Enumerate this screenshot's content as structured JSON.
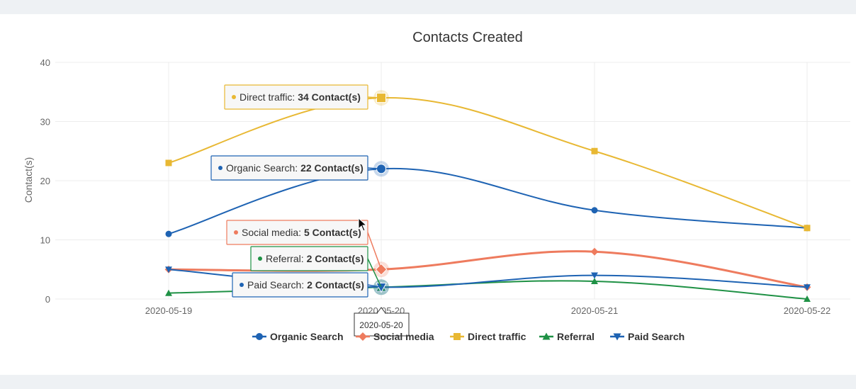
{
  "chart_data": {
    "type": "line",
    "title": "Contacts Created",
    "xlabel": "",
    "ylabel": "Contact(s)",
    "categories": [
      "2020-05-19",
      "2020-05-20",
      "2020-05-21",
      "2020-05-22"
    ],
    "ylim": [
      0,
      40
    ],
    "yticks": [
      0,
      10,
      20,
      30,
      40
    ],
    "grid": true,
    "legend_position": "bottom",
    "series": [
      {
        "name": "Organic Search",
        "values": [
          11,
          22,
          15,
          12
        ],
        "color": "#1e63b3",
        "marker": "circle",
        "width": 2
      },
      {
        "name": "Social media",
        "values": [
          5,
          5,
          8,
          2
        ],
        "color": "#ee7b5e",
        "marker": "diamond",
        "width": 3
      },
      {
        "name": "Direct traffic",
        "values": [
          23,
          34,
          25,
          12
        ],
        "color": "#e8b833",
        "marker": "square",
        "width": 2
      },
      {
        "name": "Referral",
        "values": [
          1,
          2,
          3,
          0
        ],
        "color": "#1f9145",
        "marker": "triangle-up",
        "width": 2
      },
      {
        "name": "Paid Search",
        "values": [
          5,
          2,
          4,
          2
        ],
        "color": "#1e63b3",
        "marker": "triangle-down",
        "width": 2
      }
    ],
    "tooltip": {
      "category": "2020-05-20",
      "unit_suffix": " Contact(s)",
      "entries": [
        {
          "series": "Direct traffic",
          "value": 34
        },
        {
          "series": "Organic Search",
          "value": 22
        },
        {
          "series": "Social media",
          "value": 5
        },
        {
          "series": "Referral",
          "value": 2
        },
        {
          "series": "Paid Search",
          "value": 2
        }
      ]
    }
  }
}
